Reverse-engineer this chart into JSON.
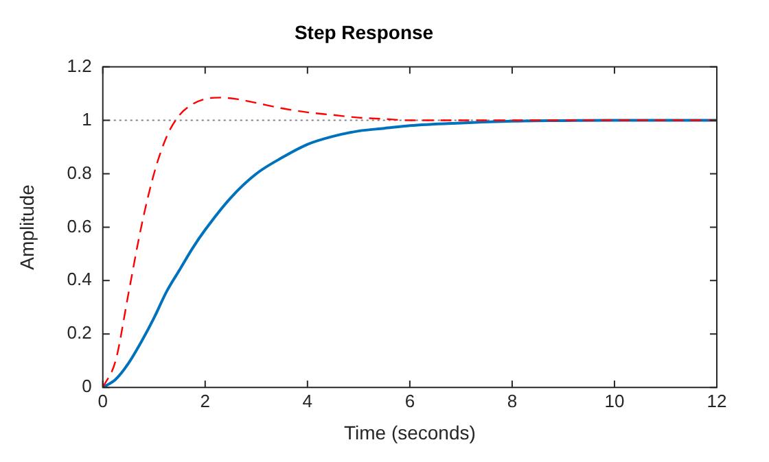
{
  "chart_data": {
    "type": "line",
    "title": "Step Response",
    "xlabel": "Time (seconds)",
    "ylabel": "Amplitude",
    "xlim": [
      0,
      12
    ],
    "xticks": [
      0,
      2,
      4,
      6,
      8,
      10,
      12
    ],
    "ylim": [
      0,
      1.2
    ],
    "yticks": [
      0,
      0.2,
      0.4,
      0.6,
      0.8,
      1,
      1.2
    ],
    "grid": false,
    "legend": false,
    "marker": "none",
    "ref_lines": [
      {
        "axis": "y",
        "value": 1,
        "color": "#808080",
        "line_style": "dotted"
      }
    ],
    "series": [
      {
        "color": "#0072bd",
        "line_style": "solid",
        "x": [
          0,
          0.25,
          0.5,
          0.75,
          1,
          1.25,
          1.5,
          1.75,
          2,
          2.5,
          3,
          3.5,
          4,
          4.5,
          5,
          5.5,
          6,
          7,
          8,
          9,
          10,
          11,
          12
        ],
        "values": [
          0,
          0.03,
          0.09,
          0.17,
          0.26,
          0.36,
          0.44,
          0.52,
          0.59,
          0.71,
          0.8,
          0.86,
          0.91,
          0.94,
          0.96,
          0.97,
          0.98,
          0.99,
          0.997,
          0.999,
          1,
          1,
          1
        ]
      },
      {
        "color": "#ff0000",
        "line_style": "dashed",
        "x": [
          0,
          0.25,
          0.5,
          0.75,
          1,
          1.25,
          1.5,
          1.75,
          2,
          2.3,
          2.6,
          3,
          3.5,
          4,
          4.5,
          5,
          5.5,
          6,
          7,
          8,
          9,
          10,
          11,
          12
        ],
        "values": [
          0,
          0.1,
          0.35,
          0.6,
          0.8,
          0.94,
          1.02,
          1.06,
          1.08,
          1.085,
          1.08,
          1.065,
          1.045,
          1.03,
          1.02,
          1.01,
          1.005,
          1,
          1,
          1,
          1,
          1,
          1,
          1
        ]
      }
    ]
  }
}
